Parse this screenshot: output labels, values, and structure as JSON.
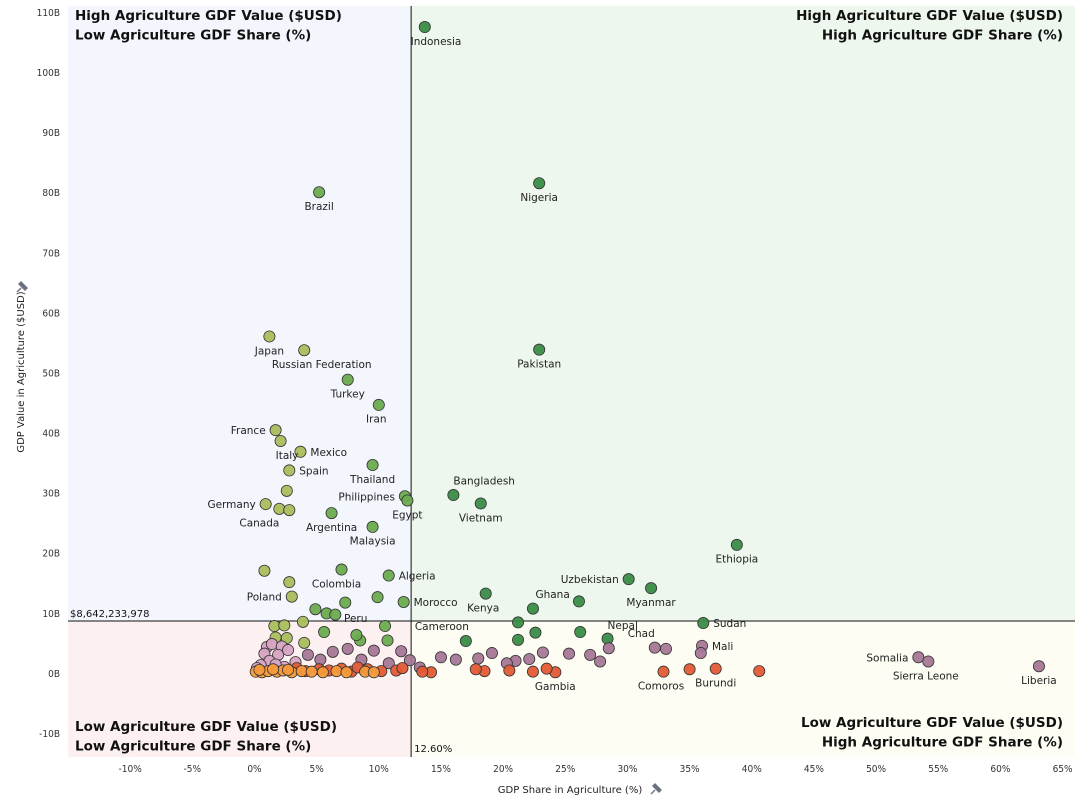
{
  "chart_data": {
    "type": "scatter",
    "xlabel": "GDP Share in Agriculture (%)",
    "ylabel": "GDP Value in Agriculture ($USD)",
    "xlim": [
      -15,
      66
    ],
    "ylim": [
      -14,
      111
    ],
    "x_ticks": [
      -10,
      -5,
      0,
      5,
      10,
      15,
      20,
      25,
      30,
      35,
      40,
      45,
      50,
      55,
      60,
      65
    ],
    "x_tick_labels": [
      "-10%",
      "-5%",
      "0%",
      "5%",
      "10%",
      "15%",
      "20%",
      "25%",
      "30%",
      "35%",
      "40%",
      "45%",
      "50%",
      "55%",
      "60%",
      "65%"
    ],
    "y_ticks": [
      -10,
      0,
      10,
      20,
      30,
      40,
      50,
      60,
      70,
      80,
      90,
      100,
      110
    ],
    "y_tick_labels": [
      "-10B",
      "0B",
      "10B",
      "20B",
      "30B",
      "40B",
      "50B",
      "60B",
      "70B",
      "80B",
      "90B",
      "100B",
      "110B"
    ],
    "reference_lines": {
      "x": 12.6,
      "x_label": "12.60%",
      "y": 8.642233978,
      "y_label": "$8,642,233,978"
    },
    "quadrants": {
      "top_left": [
        "High Agriculture GDF Value ($USD)",
        "Low Agriculture GDF Share (%)"
      ],
      "top_right": [
        "High Agriculture GDF Value ($USD)",
        "High Agriculture GDF Share (%)"
      ],
      "bottom_left": [
        "Low Agriculture GDF Value ($USD)",
        "Low Agriculture GDF Share (%)"
      ],
      "bottom_right": [
        "Low Agriculture GDF Value ($USD)",
        "High Agriculture GDF Share (%)"
      ]
    },
    "colors": {
      "top_left_bg": "#f3f6fc",
      "top_right_bg": "#eef7ee",
      "bottom_left_bg": "#fdf0f0",
      "bottom_right_bg": "#fdfdf3",
      "group_olive": "#a9be5c",
      "group_green_light": "#6aab4f",
      "group_green_dark": "#3a8c46",
      "group_purple": "#a77897",
      "group_pink": "#d7a3c3",
      "group_orange": "#f59a3a",
      "group_red": "#e45a34"
    },
    "points": [
      {
        "name": "Indonesia",
        "x": 13.7,
        "y": 107.5,
        "group": "group_green_dark",
        "lx": 0.9,
        "ly": -2.3,
        "anchor": "middle"
      },
      {
        "name": "Brazil",
        "x": 5.2,
        "y": 80.0,
        "group": "group_green_light",
        "lx": 0,
        "ly": -2.3,
        "anchor": "middle"
      },
      {
        "name": "Nigeria",
        "x": 22.9,
        "y": 81.5,
        "group": "group_green_dark",
        "lx": 0,
        "ly": -2.3,
        "anchor": "middle"
      },
      {
        "name": "Japan",
        "x": 1.2,
        "y": 56.0,
        "group": "group_olive",
        "lx": 0,
        "ly": -2.3,
        "anchor": "middle"
      },
      {
        "name": "Russian Federation",
        "x": 4.0,
        "y": 53.7,
        "group": "group_olive",
        "lx": -2.6,
        "ly": -2.3,
        "anchor": "start"
      },
      {
        "name": "Pakistan",
        "x": 22.9,
        "y": 53.8,
        "group": "group_green_dark",
        "lx": 0,
        "ly": -2.3,
        "anchor": "middle"
      },
      {
        "name": "Turkey",
        "x": 7.5,
        "y": 48.8,
        "group": "group_green_light",
        "lx": 0,
        "ly": -2.3,
        "anchor": "middle"
      },
      {
        "name": "Iran",
        "x": 10.0,
        "y": 44.6,
        "group": "group_green_light",
        "lx": -0.2,
        "ly": -2.3,
        "anchor": "middle"
      },
      {
        "name": "France",
        "x": 1.7,
        "y": 40.4,
        "group": "group_olive",
        "lx": -0.8,
        "ly": 0,
        "anchor": "end"
      },
      {
        "name": "Italy",
        "x": 2.1,
        "y": 38.6,
        "group": "group_olive",
        "lx": -0.4,
        "ly": -2.3,
        "anchor": "start"
      },
      {
        "name": "Mexico",
        "x": 3.7,
        "y": 36.8,
        "group": "group_olive",
        "lx": 0.8,
        "ly": 0,
        "anchor": "start"
      },
      {
        "name": "Spain",
        "x": 2.8,
        "y": 33.7,
        "group": "group_olive",
        "lx": 0.8,
        "ly": 0,
        "anchor": "start"
      },
      {
        "name": "Thailand",
        "x": 9.5,
        "y": 34.6,
        "group": "group_green_light",
        "lx": 0,
        "ly": -2.3,
        "anchor": "middle"
      },
      {
        "name": "Bangladesh",
        "x": 16.0,
        "y": 29.6,
        "group": "group_green_dark",
        "lx": 0,
        "ly": 2.4,
        "anchor": "start"
      },
      {
        "name": "Philippines",
        "x": 12.1,
        "y": 29.4,
        "group": "group_green_light",
        "lx": -0.8,
        "ly": 0,
        "anchor": "end"
      },
      {
        "name": "Egypt",
        "x": 12.3,
        "y": 28.7,
        "group": "group_green_light",
        "lx": 0,
        "ly": -2.3,
        "anchor": "middle"
      },
      {
        "name": "Vietnam",
        "x": 18.2,
        "y": 28.2,
        "group": "group_green_dark",
        "lx": 0,
        "ly": -2.3,
        "anchor": "middle"
      },
      {
        "name": "Germany",
        "x": 0.9,
        "y": 28.1,
        "group": "group_olive",
        "lx": -0.8,
        "ly": 0,
        "anchor": "end"
      },
      {
        "name": "Canada",
        "x": 2.0,
        "y": 27.3,
        "group": "group_olive",
        "lx": 0,
        "ly": -2.3,
        "anchor": "end"
      },
      {
        "name": "",
        "x": 2.8,
        "y": 27.1,
        "group": "group_olive"
      },
      {
        "name": "",
        "x": 2.6,
        "y": 30.3,
        "group": "group_olive"
      },
      {
        "name": "Argentina",
        "x": 6.2,
        "y": 26.6,
        "group": "group_green_light",
        "lx": 0,
        "ly": -2.3,
        "anchor": "middle"
      },
      {
        "name": "Malaysia",
        "x": 9.5,
        "y": 24.3,
        "group": "group_green_light",
        "lx": 0,
        "ly": -2.3,
        "anchor": "middle"
      },
      {
        "name": "Ethiopia",
        "x": 38.8,
        "y": 21.3,
        "group": "group_green_dark",
        "lx": 0,
        "ly": -2.3,
        "anchor": "middle"
      },
      {
        "name": "Colombia",
        "x": 7.0,
        "y": 17.2,
        "group": "group_green_light",
        "lx": -0.4,
        "ly": -2.3,
        "anchor": "middle"
      },
      {
        "name": "Algeria",
        "x": 10.8,
        "y": 16.2,
        "group": "group_green_light",
        "lx": 0.8,
        "ly": 0,
        "anchor": "start"
      },
      {
        "name": "Uzbekistan",
        "x": 30.1,
        "y": 15.6,
        "group": "group_green_dark",
        "lx": -0.8,
        "ly": 0,
        "anchor": "end"
      },
      {
        "name": "Myanmar",
        "x": 31.9,
        "y": 14.1,
        "group": "group_green_dark",
        "lx": 0,
        "ly": -2.3,
        "anchor": "middle"
      },
      {
        "name": "",
        "x": 0.8,
        "y": 17.0,
        "group": "group_olive"
      },
      {
        "name": "",
        "x": 2.8,
        "y": 15.1,
        "group": "group_olive"
      },
      {
        "name": "Poland",
        "x": 3.0,
        "y": 12.7,
        "group": "group_olive",
        "lx": -0.8,
        "ly": 0,
        "anchor": "end"
      },
      {
        "name": "Kenya",
        "x": 18.6,
        "y": 13.2,
        "group": "group_green_dark",
        "lx": -0.2,
        "ly": -2.3,
        "anchor": "middle"
      },
      {
        "name": "Ghana",
        "x": 22.4,
        "y": 10.7,
        "group": "group_green_dark",
        "lx": 0.2,
        "ly": 2.4,
        "anchor": "start"
      },
      {
        "name": "",
        "x": 26.1,
        "y": 11.9,
        "group": "group_green_dark"
      },
      {
        "name": "Morocco",
        "x": 12.0,
        "y": 11.8,
        "group": "group_green_light",
        "lx": 0.8,
        "ly": 0,
        "anchor": "start"
      },
      {
        "name": "",
        "x": 9.9,
        "y": 12.6,
        "group": "group_green_light"
      },
      {
        "name": "",
        "x": 7.3,
        "y": 11.7,
        "group": "group_green_light"
      },
      {
        "name": "",
        "x": 4.9,
        "y": 10.6,
        "group": "group_green_light"
      },
      {
        "name": "Peru",
        "x": 5.8,
        "y": 9.9,
        "group": "group_green_light",
        "lx": 1.4,
        "ly": -0.8,
        "anchor": "start"
      },
      {
        "name": "",
        "x": 6.5,
        "y": 9.7,
        "group": "group_green_light"
      },
      {
        "name": "Sudan",
        "x": 36.1,
        "y": 8.3,
        "group": "group_green_dark",
        "lx": 0.8,
        "ly": 0,
        "anchor": "start"
      },
      {
        "name": "",
        "x": 21.2,
        "y": 8.4,
        "group": "group_green_dark"
      },
      {
        "name": "Cameroon",
        "x": 10.5,
        "y": 7.8,
        "group": "group_green_light",
        "lx": 2.4,
        "ly": 0,
        "anchor": "start"
      },
      {
        "name": "Nepal",
        "x": 28.4,
        "y": 5.7,
        "group": "group_green_dark",
        "lx": 0,
        "ly": 2.3,
        "anchor": "start"
      },
      {
        "name": "",
        "x": 26.2,
        "y": 6.8,
        "group": "group_green_dark"
      },
      {
        "name": "",
        "x": 22.6,
        "y": 6.7,
        "group": "group_green_dark"
      },
      {
        "name": "",
        "x": 21.2,
        "y": 5.5,
        "group": "group_green_dark"
      },
      {
        "name": "",
        "x": 17.0,
        "y": 5.3,
        "group": "group_green_dark"
      },
      {
        "name": "",
        "x": 10.7,
        "y": 5.4,
        "group": "group_green_light"
      },
      {
        "name": "",
        "x": 5.6,
        "y": 6.8,
        "group": "group_green_light"
      },
      {
        "name": "",
        "x": 8.5,
        "y": 5.4,
        "group": "group_green_light"
      },
      {
        "name": "",
        "x": 4.0,
        "y": 5.0,
        "group": "group_olive"
      },
      {
        "name": "",
        "x": 1.6,
        "y": 7.8,
        "group": "group_olive"
      },
      {
        "name": "",
        "x": 2.4,
        "y": 7.9,
        "group": "group_olive"
      },
      {
        "name": "",
        "x": 3.9,
        "y": 8.5,
        "group": "group_olive"
      },
      {
        "name": "",
        "x": 1.7,
        "y": 5.9,
        "group": "group_olive"
      },
      {
        "name": "",
        "x": 2.6,
        "y": 5.8,
        "group": "group_olive"
      },
      {
        "name": "",
        "x": 8.2,
        "y": 6.3,
        "group": "group_green_light"
      },
      {
        "name": "Chad",
        "x": 32.2,
        "y": 4.2,
        "group": "group_purple",
        "lx": 0,
        "ly": 2.4,
        "anchor": "end"
      },
      {
        "name": "",
        "x": 33.1,
        "y": 4.0,
        "group": "group_purple"
      },
      {
        "name": "Mali",
        "x": 36.0,
        "y": 4.5,
        "group": "group_purple",
        "lx": 0.8,
        "ly": 0,
        "anchor": "start"
      },
      {
        "name": "",
        "x": 35.9,
        "y": 3.3,
        "group": "group_purple"
      },
      {
        "name": "",
        "x": 28.5,
        "y": 4.1,
        "group": "group_purple"
      },
      {
        "name": "",
        "x": 27.0,
        "y": 3.0,
        "group": "group_purple"
      },
      {
        "name": "",
        "x": 27.8,
        "y": 1.9,
        "group": "group_purple"
      },
      {
        "name": "",
        "x": 25.3,
        "y": 3.2,
        "group": "group_purple"
      },
      {
        "name": "",
        "x": 23.2,
        "y": 3.4,
        "group": "group_purple"
      },
      {
        "name": "",
        "x": 22.1,
        "y": 2.3,
        "group": "group_purple"
      },
      {
        "name": "",
        "x": 21.0,
        "y": 2.0,
        "group": "group_purple"
      },
      {
        "name": "",
        "x": 19.1,
        "y": 3.3,
        "group": "group_purple"
      },
      {
        "name": "",
        "x": 16.2,
        "y": 2.2,
        "group": "group_purple"
      },
      {
        "name": "",
        "x": 15.0,
        "y": 2.6,
        "group": "group_purple"
      },
      {
        "name": "",
        "x": 13.3,
        "y": 0.9,
        "group": "group_purple"
      },
      {
        "name": "",
        "x": 12.5,
        "y": 2.1,
        "group": "group_purple"
      },
      {
        "name": "",
        "x": 11.8,
        "y": 3.6,
        "group": "group_purple"
      },
      {
        "name": "",
        "x": 10.8,
        "y": 1.6,
        "group": "group_purple"
      },
      {
        "name": "",
        "x": 9.6,
        "y": 3.7,
        "group": "group_purple"
      },
      {
        "name": "",
        "x": 8.6,
        "y": 2.2,
        "group": "group_purple"
      },
      {
        "name": "",
        "x": 7.5,
        "y": 4.0,
        "group": "group_purple"
      },
      {
        "name": "",
        "x": 6.3,
        "y": 3.5,
        "group": "group_purple"
      },
      {
        "name": "",
        "x": 5.3,
        "y": 2.2,
        "group": "group_purple"
      },
      {
        "name": "",
        "x": 4.3,
        "y": 3.0,
        "group": "group_purple"
      },
      {
        "name": "",
        "x": 20.3,
        "y": 1.6,
        "group": "group_purple"
      },
      {
        "name": "",
        "x": 18.0,
        "y": 2.4,
        "group": "group_purple"
      },
      {
        "name": "",
        "x": 1.0,
        "y": 4.3,
        "group": "group_pink"
      },
      {
        "name": "",
        "x": 1.4,
        "y": 4.8,
        "group": "group_pink"
      },
      {
        "name": "",
        "x": 2.2,
        "y": 4.4,
        "group": "group_pink"
      },
      {
        "name": "",
        "x": 0.8,
        "y": 3.2,
        "group": "group_pink"
      },
      {
        "name": "",
        "x": 1.9,
        "y": 3.0,
        "group": "group_pink"
      },
      {
        "name": "",
        "x": 2.7,
        "y": 3.8,
        "group": "group_pink"
      },
      {
        "name": "",
        "x": 1.2,
        "y": 2.0,
        "group": "group_pink"
      },
      {
        "name": "",
        "x": 3.3,
        "y": 1.8,
        "group": "group_pink"
      },
      {
        "name": "",
        "x": 0.5,
        "y": 1.3,
        "group": "group_pink"
      },
      {
        "name": "",
        "x": 2.4,
        "y": 1.0,
        "group": "group_pink"
      },
      {
        "name": "",
        "x": 0.2,
        "y": 0.8,
        "group": "group_pink"
      },
      {
        "name": "",
        "x": 1.7,
        "y": 1.4,
        "group": "group_pink"
      },
      {
        "name": "Somalia",
        "x": 53.4,
        "y": 2.6,
        "group": "group_purple",
        "lx": -0.8,
        "ly": 0,
        "anchor": "end"
      },
      {
        "name": "Sierra Leone",
        "x": 54.2,
        "y": 1.9,
        "group": "group_purple",
        "lx": -0.2,
        "ly": -2.3,
        "anchor": "middle"
      },
      {
        "name": "Liberia",
        "x": 63.1,
        "y": 1.1,
        "group": "group_purple",
        "lx": 0,
        "ly": -2.3,
        "anchor": "middle"
      },
      {
        "name": "Burundi",
        "x": 37.1,
        "y": 0.7,
        "group": "group_red",
        "lx": 0,
        "ly": -2.3,
        "anchor": "middle"
      },
      {
        "name": "",
        "x": 40.6,
        "y": 0.3,
        "group": "group_red"
      },
      {
        "name": "",
        "x": 35.0,
        "y": 0.6,
        "group": "group_red"
      },
      {
        "name": "Comoros",
        "x": 32.9,
        "y": 0.2,
        "group": "group_red",
        "lx": -0.2,
        "ly": -2.3,
        "anchor": "middle"
      },
      {
        "name": "Gambia",
        "x": 24.2,
        "y": 0.1,
        "group": "group_red",
        "lx": 0,
        "ly": -2.3,
        "anchor": "middle"
      },
      {
        "name": "",
        "x": 23.5,
        "y": 0.7,
        "group": "group_red"
      },
      {
        "name": "",
        "x": 22.4,
        "y": 0.2,
        "group": "group_red"
      },
      {
        "name": "",
        "x": 20.5,
        "y": 0.4,
        "group": "group_red"
      },
      {
        "name": "",
        "x": 18.5,
        "y": 0.3,
        "group": "group_red"
      },
      {
        "name": "",
        "x": 17.8,
        "y": 0.6,
        "group": "group_red"
      },
      {
        "name": "",
        "x": 14.2,
        "y": 0.1,
        "group": "group_red"
      },
      {
        "name": "",
        "x": 13.5,
        "y": 0.2,
        "group": "group_red"
      },
      {
        "name": "",
        "x": 11.4,
        "y": 0.4,
        "group": "group_red"
      },
      {
        "name": "",
        "x": 10.2,
        "y": 0.3,
        "group": "group_red"
      },
      {
        "name": "",
        "x": 9.1,
        "y": 0.6,
        "group": "group_red"
      },
      {
        "name": "",
        "x": 7.8,
        "y": 0.2,
        "group": "group_red"
      },
      {
        "name": "",
        "x": 7.0,
        "y": 0.7,
        "group": "group_red"
      },
      {
        "name": "",
        "x": 5.2,
        "y": 0.6,
        "group": "group_red"
      },
      {
        "name": "",
        "x": 4.1,
        "y": 0.3,
        "group": "group_red"
      },
      {
        "name": "",
        "x": 3.4,
        "y": 0.8,
        "group": "group_red"
      },
      {
        "name": "",
        "x": 11.9,
        "y": 0.8,
        "group": "group_red"
      },
      {
        "name": "",
        "x": 8.3,
        "y": 0.9,
        "group": "group_red"
      },
      {
        "name": "",
        "x": 6.0,
        "y": 0.4,
        "group": "group_red"
      },
      {
        "name": "",
        "x": 0.1,
        "y": 0.2,
        "group": "group_orange"
      },
      {
        "name": "",
        "x": 0.6,
        "y": 0.1,
        "group": "group_orange"
      },
      {
        "name": "",
        "x": 1.1,
        "y": 0.3,
        "group": "group_orange"
      },
      {
        "name": "",
        "x": 1.8,
        "y": 0.2,
        "group": "group_orange"
      },
      {
        "name": "",
        "x": 2.3,
        "y": 0.4,
        "group": "group_orange"
      },
      {
        "name": "",
        "x": 3.0,
        "y": 0.1,
        "group": "group_orange"
      },
      {
        "name": "",
        "x": 3.8,
        "y": 0.3,
        "group": "group_orange"
      },
      {
        "name": "",
        "x": 4.6,
        "y": 0.2,
        "group": "group_orange"
      },
      {
        "name": "",
        "x": 5.5,
        "y": 0.1,
        "group": "group_orange"
      },
      {
        "name": "",
        "x": 6.6,
        "y": 0.3,
        "group": "group_orange"
      },
      {
        "name": "",
        "x": 7.4,
        "y": 0.1,
        "group": "group_orange"
      },
      {
        "name": "",
        "x": 8.9,
        "y": 0.2,
        "group": "group_orange"
      },
      {
        "name": "",
        "x": 9.6,
        "y": 0.1,
        "group": "group_orange"
      },
      {
        "name": "",
        "x": 0.4,
        "y": 0.5,
        "group": "group_orange"
      },
      {
        "name": "",
        "x": 1.5,
        "y": 0.6,
        "group": "group_orange"
      },
      {
        "name": "",
        "x": 2.7,
        "y": 0.5,
        "group": "group_orange"
      }
    ]
  }
}
